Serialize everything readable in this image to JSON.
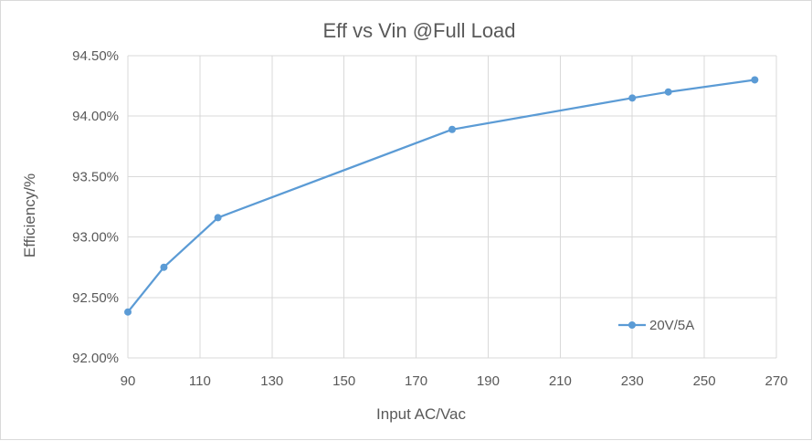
{
  "chart_data": {
    "type": "line",
    "title": "Eff vs Vin @Full Load",
    "xlabel": "Input AC/Vac",
    "ylabel": "Efficiency/%",
    "xlim": [
      90,
      270
    ],
    "ylim": [
      92.0,
      94.5
    ],
    "x_ticks": [
      "90",
      "110",
      "130",
      "150",
      "170",
      "190",
      "210",
      "230",
      "250",
      "270"
    ],
    "y_ticks": [
      "92.00%",
      "92.50%",
      "93.00%",
      "93.50%",
      "94.00%",
      "94.50%"
    ],
    "grid": true,
    "legend_position": "bottom-right",
    "series": [
      {
        "name": "20V/5A",
        "color": "#5b9bd5",
        "x": [
          90,
          100,
          115,
          180,
          230,
          240,
          264
        ],
        "y": [
          92.38,
          92.75,
          93.16,
          93.89,
          94.15,
          94.2,
          94.3
        ]
      }
    ]
  }
}
